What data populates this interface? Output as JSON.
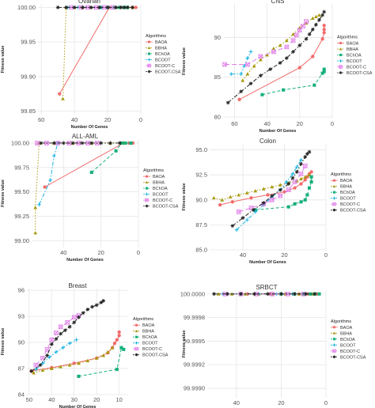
{
  "colors": {
    "BAOA": "#f26b6b",
    "BBHA": "#a89a12",
    "BChOA": "#15b07a",
    "BCOOT": "#18b3e0",
    "BCOOT-C": "#e07ee8",
    "BCOOT-CSA": "#222222",
    "grid": "#e6e6e6",
    "axis_text": "#555555"
  },
  "legend_title": "Algorithms",
  "chart_data": [
    {
      "type": "line",
      "title": "Ovarian",
      "xlabel": "Number Of Genes",
      "ylabel": "Fitness value",
      "xlim": [
        62,
        0
      ],
      "ylim": [
        99.845,
        100.005
      ],
      "xticks": [
        "60",
        "40",
        "20",
        "0"
      ],
      "xtick_values": [
        60,
        40,
        20,
        0
      ],
      "yticks": [
        "99.85",
        "99.90",
        "99.95",
        "100.00"
      ],
      "ytick_values": [
        99.85,
        99.9,
        99.95,
        100.0
      ],
      "grid": true,
      "legend": [
        "BAOA",
        "BBHA",
        "BChOA",
        "BCOOT",
        "BCOOT-C",
        "BCOOT-CSA"
      ],
      "series": [
        {
          "name": "BAOA",
          "x": [
            49,
            19,
            12,
            8,
            5,
            3
          ],
          "y": [
            99.875,
            100.0,
            100.0,
            100.0,
            100.0,
            100.0
          ]
        },
        {
          "name": "BBHA",
          "x": [
            47,
            45,
            40,
            35,
            30,
            25,
            20,
            15,
            10,
            5
          ],
          "y": [
            99.868,
            100.0,
            100.0,
            100.0,
            100.0,
            100.0,
            100.0,
            100.0,
            100.0,
            100.0
          ]
        },
        {
          "name": "BChOA",
          "x": [
            24,
            20,
            16,
            13,
            10,
            8
          ],
          "y": [
            100.0,
            100.0,
            100.0,
            100.0,
            100.0,
            100.0
          ]
        },
        {
          "name": "BCOOT",
          "x": [
            44,
            38,
            33,
            28,
            24,
            20
          ],
          "y": [
            100.0,
            100.0,
            100.0,
            100.0,
            100.0,
            100.0
          ]
        },
        {
          "name": "BCOOT-C",
          "x": [
            42,
            36,
            32,
            27,
            22,
            17
          ],
          "y": [
            100.0,
            100.0,
            100.0,
            100.0,
            100.0,
            100.0
          ]
        },
        {
          "name": "BCOOT-CSA",
          "x": [
            50,
            45,
            40,
            35,
            30,
            25,
            20,
            15,
            12,
            10,
            8,
            5
          ],
          "y": [
            100.0,
            100.0,
            100.0,
            100.0,
            100.0,
            100.0,
            100.0,
            100.0,
            100.0,
            100.0,
            100.0,
            100.0
          ]
        }
      ]
    },
    {
      "type": "line",
      "title": "CNS",
      "xlabel": "Number Of Genes",
      "ylabel": "Fitness value",
      "xlim": [
        67,
        0
      ],
      "ylim": [
        79.8,
        94.2
      ],
      "xticks": [
        "60",
        "40",
        "20",
        "0"
      ],
      "xtick_values": [
        60,
        40,
        20,
        0
      ],
      "yticks": [
        "80",
        "85",
        "90"
      ],
      "ytick_values": [
        80,
        85,
        90
      ],
      "grid": true,
      "legend": [
        "BAOA",
        "BBHA",
        "BChOA",
        "BCOOT",
        "BCOOT-C",
        "BCOOT-CSA"
      ],
      "series": [
        {
          "name": "BAOA",
          "x": [
            57,
            20,
            12,
            6,
            5,
            5,
            5
          ],
          "y": [
            82.2,
            86.2,
            87.6,
            89.8,
            90.6,
            91.0,
            91.5
          ]
        },
        {
          "name": "BBHA",
          "x": [
            55,
            52,
            48,
            44,
            40,
            36,
            32,
            28,
            24,
            20,
            16,
            12,
            10,
            8
          ],
          "y": [
            84.6,
            85.4,
            86.4,
            87.2,
            87.8,
            88.6,
            89.0,
            89.6,
            90.4,
            91.2,
            91.8,
            92.4,
            92.6,
            92.8
          ]
        },
        {
          "name": "BChOA",
          "x": [
            43,
            30,
            11,
            6,
            5,
            5
          ],
          "y": [
            82.8,
            83.4,
            84.0,
            85.5,
            85.7,
            86.0
          ]
        },
        {
          "name": "BCOOT",
          "x": [
            62,
            56,
            54,
            52,
            50
          ],
          "y": [
            85.4,
            85.4,
            86.4,
            87.4,
            88.2
          ]
        },
        {
          "name": "BCOOT-C",
          "x": [
            66,
            52,
            44,
            36,
            28,
            24,
            22,
            20,
            18,
            16
          ],
          "y": [
            86.6,
            86.6,
            87.6,
            88.2,
            88.8,
            89.6,
            90.3,
            90.9,
            91.4,
            92.0
          ]
        },
        {
          "name": "BCOOT-CSA",
          "x": [
            64,
            56,
            50,
            44,
            38,
            32,
            28,
            24,
            20,
            16,
            14,
            12,
            10,
            8,
            6,
            5
          ],
          "y": [
            81.8,
            83.2,
            84.2,
            85.2,
            86.0,
            86.8,
            87.4,
            88.2,
            89.0,
            89.8,
            90.4,
            91.0,
            91.6,
            92.2,
            92.8,
            93.2
          ]
        }
      ]
    },
    {
      "type": "line",
      "title": "ALL-AML",
      "xlabel": "Number Of Genes",
      "ylabel": "Fitness value",
      "xlim": [
        57,
        0
      ],
      "ylim": [
        98.93,
        100.04
      ],
      "xticks": [
        "40",
        "20",
        "0"
      ],
      "xtick_values": [
        40,
        20,
        0
      ],
      "yticks": [
        "99.00",
        "99.25",
        "99.50",
        "99.75",
        "100.00"
      ],
      "ytick_values": [
        99.0,
        99.25,
        99.5,
        99.75,
        100.0
      ],
      "grid": true,
      "legend": [
        "BAOA",
        "BBHA",
        "BChOA",
        "BCOOT",
        "BCOOT-C",
        "BCOOT-CSA"
      ],
      "series": [
        {
          "name": "BAOA",
          "x": [
            50,
            8,
            5,
            3
          ],
          "y": [
            99.55,
            100.0,
            100.0,
            100.0
          ]
        },
        {
          "name": "BBHA",
          "x": [
            55,
            55,
            53,
            45,
            35,
            25,
            15,
            8
          ],
          "y": [
            99.08,
            99.34,
            100.0,
            100.0,
            100.0,
            100.0,
            100.0,
            100.0
          ]
        },
        {
          "name": "BChOA",
          "x": [
            25,
            12,
            9,
            7,
            4
          ],
          "y": [
            99.7,
            99.92,
            100.0,
            100.0,
            100.0
          ]
        },
        {
          "name": "BCOOT",
          "x": [
            53,
            47,
            45,
            43
          ],
          "y": [
            99.37,
            99.62,
            99.87,
            100.0
          ]
        },
        {
          "name": "BCOOT-C",
          "x": [
            54,
            49,
            43,
            37,
            32,
            27,
            22
          ],
          "y": [
            100.0,
            100.0,
            100.0,
            100.0,
            100.0,
            100.0,
            100.0
          ]
        },
        {
          "name": "BCOOT-CSA",
          "x": [
            52,
            45,
            40,
            35,
            30,
            25,
            20,
            15,
            10
          ],
          "y": [
            100.0,
            100.0,
            100.0,
            100.0,
            100.0,
            100.0,
            100.0,
            100.0,
            100.0
          ]
        }
      ]
    },
    {
      "type": "line",
      "title": "Colon",
      "xlabel": "Number Of Genes",
      "ylabel": "Fitness value",
      "xlim": [
        56,
        0
      ],
      "ylim": [
        85.0,
        95.6
      ],
      "xticks": [
        "40",
        "20",
        "0"
      ],
      "xtick_values": [
        40,
        20,
        0
      ],
      "yticks": [
        "85.0",
        "87.5",
        "90.0",
        "92.5",
        "95.0"
      ],
      "ytick_values": [
        85.0,
        87.5,
        90.0,
        92.5,
        95.0
      ],
      "grid": true,
      "legend": [
        "BAOA",
        "BBHA",
        "BChOA",
        "BCOOT",
        "BCOOT-C",
        "BCOOT-CSA"
      ],
      "series": [
        {
          "name": "BAOA",
          "x": [
            51,
            45,
            36,
            28,
            20,
            15,
            12,
            10,
            9,
            8,
            7
          ],
          "y": [
            89.5,
            89.8,
            90.2,
            90.5,
            90.8,
            91.2,
            91.6,
            92.0,
            92.3,
            92.6,
            92.8
          ]
        },
        {
          "name": "BBHA",
          "x": [
            54,
            50,
            46,
            42,
            38,
            34,
            30,
            26,
            22,
            18,
            14,
            12,
            10,
            8
          ],
          "y": [
            90.2,
            90.0,
            90.3,
            90.5,
            90.7,
            90.9,
            91.1,
            91.3,
            91.5,
            91.7,
            91.9,
            92.1,
            92.3,
            92.5
          ]
        },
        {
          "name": "BChOA",
          "x": [
            34,
            18,
            15,
            12,
            10,
            9,
            8,
            7,
            7
          ],
          "y": [
            89.0,
            89.3,
            89.6,
            89.8,
            90.0,
            90.5,
            91.2,
            91.8,
            92.3
          ]
        },
        {
          "name": "BCOOT",
          "x": [
            43,
            38,
            34,
            30,
            26,
            22,
            19,
            16,
            14,
            12
          ],
          "y": [
            87.0,
            88.0,
            88.8,
            89.5,
            90.3,
            91.0,
            91.8,
            92.6,
            93.3,
            94.0
          ]
        },
        {
          "name": "BCOOT-C",
          "x": [
            42,
            36,
            30,
            26,
            22,
            18,
            15,
            12,
            10
          ],
          "y": [
            88.8,
            89.2,
            89.6,
            90.0,
            90.4,
            91.0,
            91.8,
            92.6,
            93.4
          ]
        },
        {
          "name": "BCOOT-CSA",
          "x": [
            45,
            40,
            35,
            30,
            26,
            22,
            18,
            16,
            14,
            12,
            10,
            9,
            8
          ],
          "y": [
            87.4,
            88.2,
            89.0,
            89.7,
            90.4,
            91.0,
            91.6,
            92.2,
            92.8,
            93.6,
            94.3,
            94.6,
            94.8
          ]
        }
      ]
    },
    {
      "type": "line",
      "title": "Breast",
      "xlabel": "Number Of Genes",
      "ylabel": "Fitness value",
      "xlim": [
        51,
        6
      ],
      "ylim": [
        84.0,
        96.2
      ],
      "xticks": [
        "50",
        "40",
        "30",
        "20",
        "10"
      ],
      "xtick_values": [
        50,
        40,
        30,
        20,
        10
      ],
      "yticks": [
        "84",
        "87",
        "90",
        "93",
        "96"
      ],
      "ytick_values": [
        84,
        87,
        90,
        93,
        96
      ],
      "grid": true,
      "legend": [
        "BAOA",
        "BBHA",
        "BChOA",
        "BCOOT",
        "BCOOT-C",
        "BCOOT-CSA"
      ],
      "series": [
        {
          "name": "BAOA",
          "x": [
            49,
            40,
            30,
            20,
            15,
            13,
            12,
            11,
            10,
            10
          ],
          "y": [
            86.7,
            87.1,
            87.6,
            88.2,
            88.8,
            89.4,
            89.9,
            90.3,
            90.8,
            91.2
          ]
        },
        {
          "name": "BBHA",
          "x": [
            48,
            44,
            40,
            36,
            32,
            28,
            24,
            20,
            17,
            15,
            13
          ],
          "y": [
            86.5,
            86.8,
            87.0,
            87.2,
            87.4,
            87.6,
            87.9,
            88.2,
            88.5,
            88.9,
            89.4
          ]
        },
        {
          "name": "BChOA",
          "x": [
            28,
            11,
            9,
            8
          ],
          "y": [
            86.1,
            86.9,
            89.4,
            89.2
          ]
        },
        {
          "name": "BCOOT",
          "x": [
            47,
            44,
            41,
            38,
            35,
            32,
            29
          ],
          "y": [
            86.9,
            87.6,
            88.3,
            88.9,
            89.4,
            89.9,
            90.3
          ]
        },
        {
          "name": "BCOOT-C",
          "x": [
            47,
            44,
            42,
            40,
            38,
            36,
            33,
            30,
            28
          ],
          "y": [
            87.4,
            88.2,
            89.2,
            90.3,
            91.1,
            91.8,
            92.3,
            92.9,
            93.1
          ]
        },
        {
          "name": "BCOOT-CSA",
          "x": [
            49,
            45,
            42,
            40,
            38,
            36,
            34,
            32,
            30,
            28,
            26,
            24,
            22,
            20,
            18,
            17
          ],
          "y": [
            86.7,
            87.4,
            88.5,
            89.8,
            90.4,
            91.0,
            91.4,
            91.8,
            92.3,
            92.9,
            93.4,
            93.8,
            94.1,
            94.3,
            94.6,
            94.8
          ]
        }
      ]
    },
    {
      "type": "line",
      "title": "SRBCT",
      "xlabel": "Number Of Genes",
      "ylabel": "Fitness value",
      "xlim": [
        53,
        0
      ],
      "ylim": [
        99.9989,
        100.00004
      ],
      "xticks": [
        "40",
        "20",
        "0"
      ],
      "xtick_values": [
        40,
        20,
        0
      ],
      "yticks": [
        "99.9990",
        "99.9992",
        "99.9995",
        "99.9998",
        "100.0000"
      ],
      "ytick_values": [
        99.999,
        99.99925,
        99.9995,
        99.99975,
        100.0
      ],
      "grid": true,
      "legend": [
        "BAOA",
        "BBHA",
        "BChOA",
        "BCOOT",
        "BCOOT-C",
        "BCOOT-CSA"
      ],
      "series": [
        {
          "name": "BAOA",
          "x": [
            35,
            25,
            18,
            12,
            8,
            4
          ],
          "y": [
            100.0,
            100.0,
            100.0,
            100.0,
            100.0,
            100.0
          ]
        },
        {
          "name": "BBHA",
          "x": [
            48,
            42,
            36,
            30,
            24,
            18,
            12,
            6
          ],
          "y": [
            100.0,
            100.0,
            100.0,
            100.0,
            100.0,
            100.0,
            100.0,
            100.0
          ]
        },
        {
          "name": "BChOA",
          "x": [
            20,
            14,
            10,
            7,
            5,
            3
          ],
          "y": [
            100.0,
            100.0,
            100.0,
            100.0,
            100.0,
            100.0
          ]
        },
        {
          "name": "BCOOT",
          "x": [
            46,
            38,
            30,
            22,
            15
          ],
          "y": [
            100.0,
            100.0,
            100.0,
            100.0,
            100.0
          ]
        },
        {
          "name": "BCOOT-C",
          "x": [
            45,
            38,
            31,
            24,
            17,
            10
          ],
          "y": [
            100.0,
            100.0,
            100.0,
            100.0,
            100.0,
            100.0
          ]
        },
        {
          "name": "BCOOT-CSA",
          "x": [
            50,
            44,
            38,
            32,
            26,
            20,
            14,
            9,
            5
          ],
          "y": [
            100.0,
            100.0,
            100.0,
            100.0,
            100.0,
            100.0,
            100.0,
            100.0,
            100.0
          ]
        }
      ]
    }
  ]
}
